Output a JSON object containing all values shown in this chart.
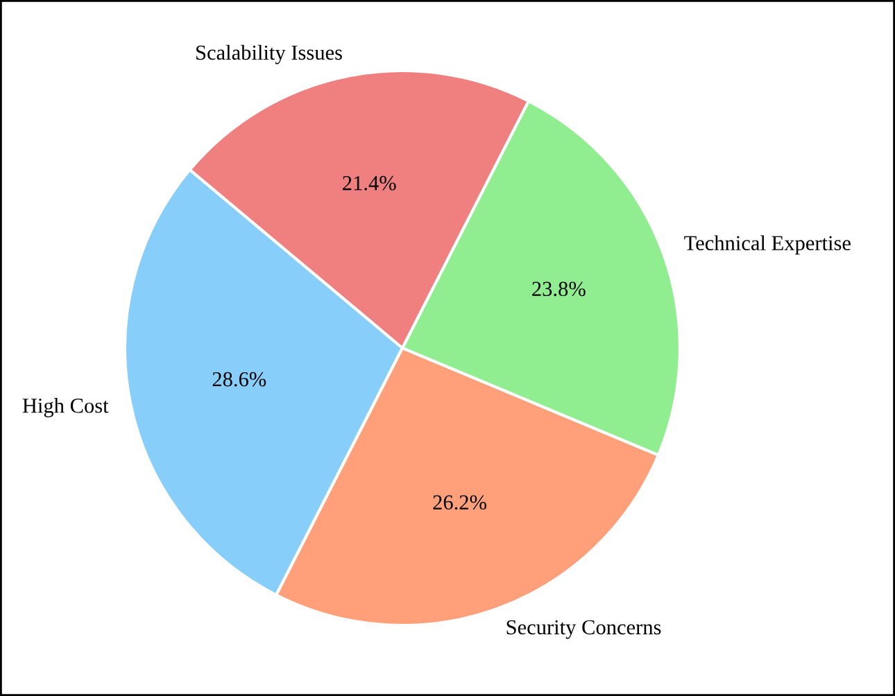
{
  "chart_data": {
    "type": "pie",
    "categories": [
      "High Cost",
      "Security Concerns",
      "Technical Expertise",
      "Scalability Issues"
    ],
    "values": [
      28.6,
      26.2,
      23.8,
      21.4
    ],
    "colors": [
      "#87cefa",
      "#ffa07a",
      "#90ee90",
      "#f08080"
    ],
    "value_labels": [
      "28.6%",
      "26.2%",
      "23.8%",
      "21.4%"
    ]
  }
}
